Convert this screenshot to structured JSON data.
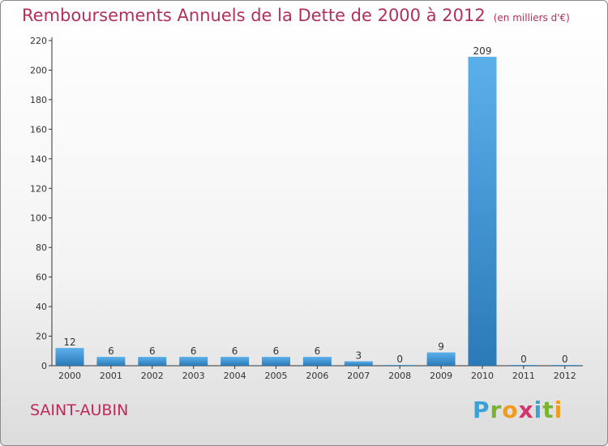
{
  "header": {
    "title": "Remboursements Annuels de la Dette de 2000 à 2012",
    "unit": "(en milliers d'€)"
  },
  "footer": {
    "commune": "SAINT-AUBIN",
    "logo_letters": [
      "P",
      "r",
      "o",
      "x",
      "i",
      "t",
      "i"
    ],
    "logo_colors": [
      "#3aa2d9",
      "#7ab32e",
      "#f29a1d",
      "#d8336e",
      "#3aa2d9",
      "#7ab32e",
      "#f29a1d"
    ]
  },
  "colors": {
    "title": "#b2305c",
    "bar_top": "#5cb0ea",
    "bar_bottom": "#2a7ab8",
    "axis": "#333333",
    "grid": "#bdbdbd"
  },
  "chart_data": {
    "type": "bar",
    "title": "Remboursements Annuels de la Dette de 2000 à 2012",
    "categories": [
      "2000",
      "2001",
      "2002",
      "2003",
      "2004",
      "2005",
      "2006",
      "2007",
      "2008",
      "2009",
      "2010",
      "2011",
      "2012"
    ],
    "values": [
      12,
      6,
      6,
      6,
      6,
      6,
      6,
      3,
      0,
      9,
      209,
      0,
      0
    ],
    "ylim": [
      0,
      220
    ],
    "yticks": [
      0,
      20,
      40,
      60,
      80,
      100,
      120,
      140,
      160,
      180,
      200,
      220
    ],
    "grid": false
  }
}
